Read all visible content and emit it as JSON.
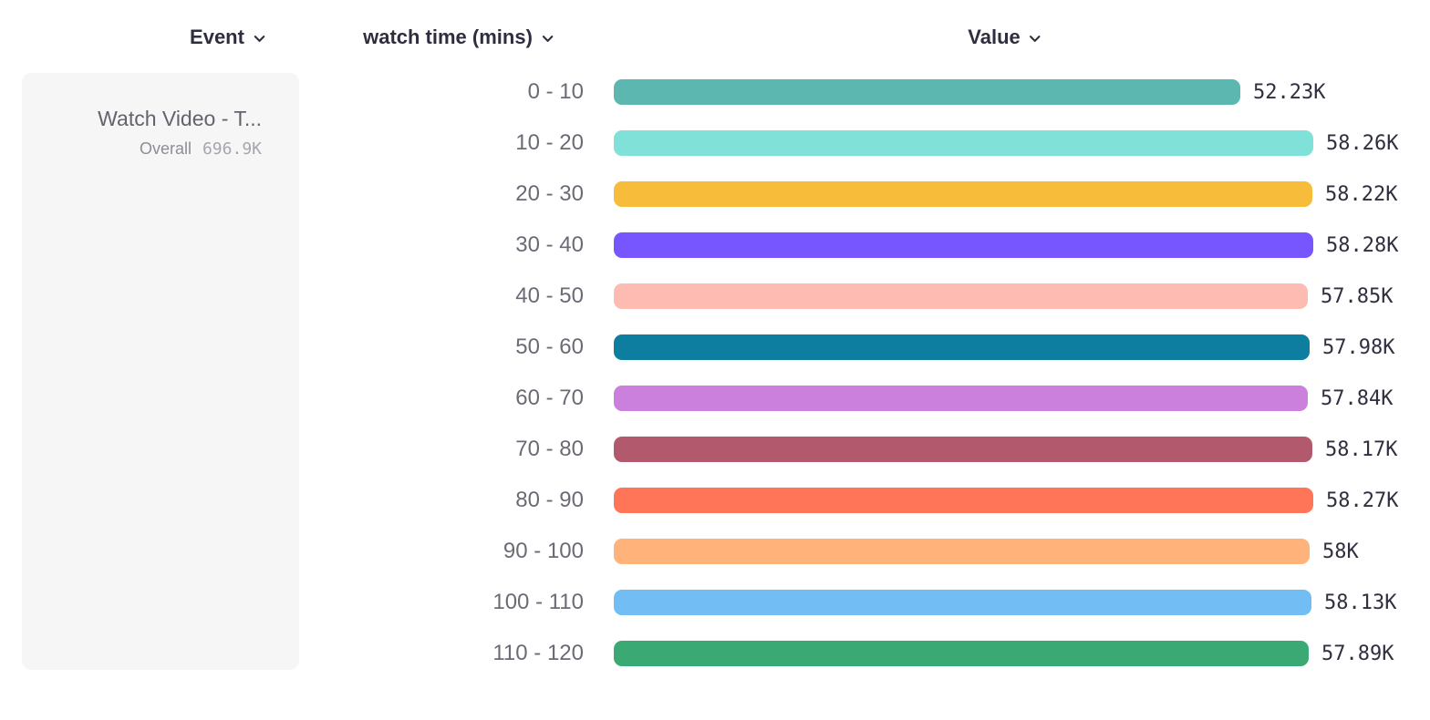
{
  "header": {
    "columns": [
      {
        "label": "Event",
        "icon": "chevron-down"
      },
      {
        "label": "watch time (mins)",
        "icon": "chevron-down"
      },
      {
        "label": "Value",
        "icon": "chevron-down"
      }
    ]
  },
  "event_panel": {
    "event_name": "Watch Video - T...",
    "overall_label": "Overall",
    "overall_value": "696.9K"
  },
  "chart_data": {
    "type": "bar",
    "orientation": "horizontal",
    "title": "",
    "xlabel": "Value",
    "ylabel": "watch time (mins)",
    "xlim": [
      0,
      58280
    ],
    "grid": false,
    "legend": false,
    "categories": [
      "0 - 10",
      "10 - 20",
      "20 - 30",
      "30 - 40",
      "40 - 50",
      "50 - 60",
      "60 - 70",
      "70 - 80",
      "80 - 90",
      "90 - 100",
      "100 - 110",
      "110 - 120"
    ],
    "values": [
      52230,
      58260,
      58220,
      58280,
      57850,
      57980,
      57840,
      58170,
      58270,
      58000,
      58130,
      57890
    ],
    "value_labels": [
      "52.23K",
      "58.26K",
      "58.22K",
      "58.28K",
      "57.85K",
      "57.98K",
      "57.84K",
      "58.17K",
      "58.27K",
      "58K",
      "58.13K",
      "57.89K"
    ],
    "bar_colors": [
      "#5BB7AF",
      "#80E1D9",
      "#F8BC3B",
      "#7856FF",
      "#FEBBB2",
      "#0D7EA0",
      "#CA80DC",
      "#B2596E",
      "#FF7557",
      "#FFB27A",
      "#72BEF4",
      "#3BA974"
    ]
  }
}
